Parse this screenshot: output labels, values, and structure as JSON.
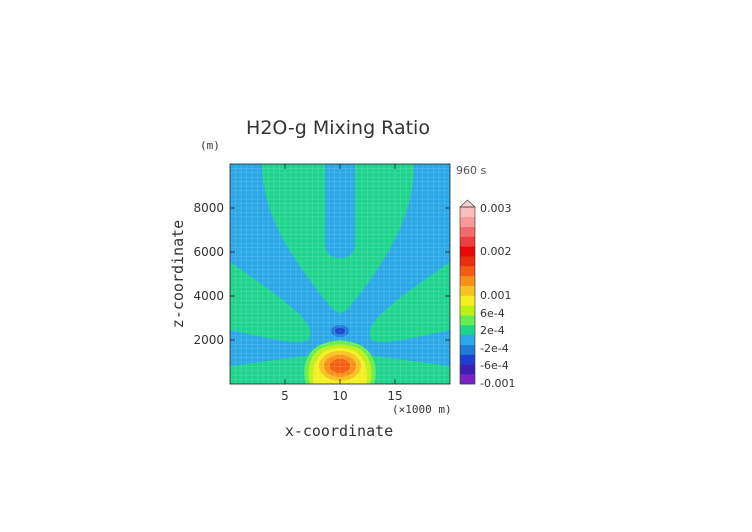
{
  "chart_data": {
    "type": "heatmap",
    "title": "H2O-g Mixing Ratio",
    "xlabel": "x-coordinate",
    "ylabel": "z-coordinate",
    "x_unit": "(×1000 m)",
    "y_unit": "(m)",
    "time_label": "960 s",
    "xlim": [
      0,
      20
    ],
    "ylim": [
      0,
      10000
    ],
    "x_ticks": [
      5,
      10,
      15
    ],
    "x_tick_labels": [
      "5",
      "10",
      "15"
    ],
    "y_ticks": [
      2000,
      4000,
      6000,
      8000
    ],
    "y_tick_labels": [
      "2000",
      "4000",
      "6000",
      "8000"
    ],
    "colorbar_labels": [
      {
        "value": 0.003,
        "text": "0.003"
      },
      {
        "value": 0.002,
        "text": "0.002"
      },
      {
        "value": 0.001,
        "text": "0.001"
      },
      {
        "value": 0.0006,
        "text": "6e-4"
      },
      {
        "value": 0.0002,
        "text": "2e-4"
      },
      {
        "value": -0.0002,
        "text": "-2e-4"
      },
      {
        "value": -0.0006,
        "text": "-6e-4"
      },
      {
        "value": -0.001,
        "text": "-0.001"
      }
    ],
    "colorbar_colors": [
      "#7b24c4",
      "#3e1fb0",
      "#1e3fd0",
      "#1f7ad8",
      "#2aa8e8",
      "#1ed48c",
      "#64ec50",
      "#bcf018",
      "#f4f020",
      "#f8c020",
      "#f89018",
      "#f45e10",
      "#e83010",
      "#e80808",
      "#f03e3e",
      "#f46a6a",
      "#f89a9a",
      "#fabcbc"
    ],
    "colorbar_top_arrow": "#fad0d0",
    "features": [
      {
        "name": "background",
        "level": "-2e-4 to 2e-4",
        "color": "#2aa8e8"
      },
      {
        "name": "v-shaped plume",
        "level": "2e-4 to 6e-4",
        "color": "#1ed48c"
      },
      {
        "name": "side lobes",
        "level": "2e-4 to 6e-4",
        "color": "#1ed48c"
      },
      {
        "name": "surface peak",
        "center_x": 10,
        "center_z": 800,
        "peak_level": "0.001",
        "color": "#f45e10"
      },
      {
        "name": "negative spot",
        "center_x": 10,
        "center_z": 2400,
        "level": "-6e-4",
        "color": "#1e3fd0"
      }
    ]
  }
}
